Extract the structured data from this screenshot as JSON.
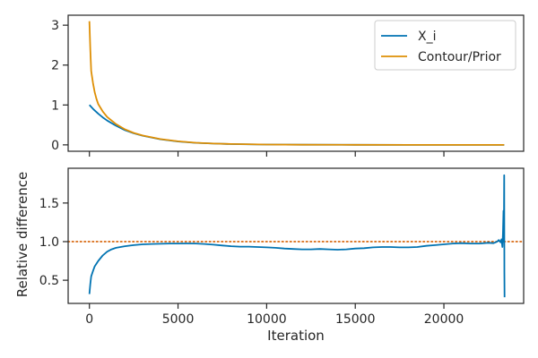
{
  "chart_data": [
    {
      "type": "line",
      "xlim": [
        -1200,
        24500
      ],
      "ylim": [
        -0.16,
        3.25
      ],
      "yticks": [
        "0",
        "1",
        "2",
        "3"
      ],
      "yticks_values": [
        0,
        1,
        2,
        3
      ],
      "xlabel": "",
      "ylabel": "",
      "legend": "top-right",
      "series": [
        {
          "name": "X_i",
          "color": "#0173b2",
          "x": [
            0,
            250,
            500,
            750,
            1000,
            1500,
            2000,
            2500,
            3000,
            4000,
            5000,
            6000,
            7000,
            8000,
            10000,
            12000,
            15000,
            18000,
            20000,
            23000,
            23400
          ],
          "y": [
            1.0,
            0.88,
            0.78,
            0.69,
            0.61,
            0.48,
            0.37,
            0.29,
            0.23,
            0.14,
            0.085,
            0.052,
            0.032,
            0.02,
            0.008,
            0.003,
            0.001,
            0.0003,
            0.0001,
            0.0,
            0.0
          ]
        },
        {
          "name": "Contour/Prior",
          "color": "#de8f05",
          "x": [
            0,
            50,
            100,
            200,
            300,
            400,
            500,
            750,
            1000,
            1500,
            2000,
            2500,
            3000,
            4000,
            5000,
            6000,
            7000,
            8000,
            10000,
            12000,
            15000,
            18000,
            20000,
            23000,
            23400
          ],
          "y": [
            3.1,
            2.4,
            1.85,
            1.55,
            1.32,
            1.15,
            1.02,
            0.84,
            0.7,
            0.52,
            0.39,
            0.3,
            0.235,
            0.145,
            0.088,
            0.054,
            0.033,
            0.021,
            0.008,
            0.003,
            0.001,
            0.0003,
            0.0001,
            0.0,
            0.0
          ]
        }
      ]
    },
    {
      "type": "line",
      "xlim": [
        -1200,
        24500
      ],
      "ylim": [
        0.2,
        1.95
      ],
      "xticks": [
        "0",
        "5000",
        "10000",
        "15000",
        "20000"
      ],
      "xticks_values": [
        0,
        5000,
        10000,
        15000,
        20000
      ],
      "yticks": [
        "0.5",
        "1.0",
        "1.5"
      ],
      "yticks_values": [
        0.5,
        1.0,
        1.5
      ],
      "xlabel": "Iteration",
      "ylabel": "Relative difference",
      "reference_line": {
        "y": 1.0,
        "color": "#d55e00",
        "style": "dotted"
      },
      "series": [
        {
          "color": "#0173b2",
          "x": [
            0,
            50,
            100,
            200,
            300,
            500,
            750,
            1000,
            1250,
            1500,
            2000,
            2500,
            3000,
            3500,
            4000,
            4500,
            5000,
            5500,
            6000,
            6500,
            7000,
            7500,
            8000,
            8500,
            9000,
            9500,
            10000,
            10500,
            11000,
            11500,
            12000,
            12500,
            13000,
            13500,
            14000,
            14500,
            15000,
            15500,
            16000,
            16500,
            17000,
            17500,
            18000,
            18500,
            19000,
            19500,
            20000,
            20500,
            21000,
            21500,
            22000,
            22500,
            22800,
            23000,
            23100,
            23200,
            23250,
            23300,
            23330,
            23360,
            23380,
            23400,
            23410,
            23420
          ],
          "y": [
            0.32,
            0.45,
            0.55,
            0.62,
            0.68,
            0.75,
            0.82,
            0.87,
            0.9,
            0.92,
            0.94,
            0.955,
            0.965,
            0.97,
            0.972,
            0.975,
            0.975,
            0.976,
            0.975,
            0.97,
            0.96,
            0.95,
            0.94,
            0.935,
            0.935,
            0.93,
            0.925,
            0.92,
            0.91,
            0.905,
            0.9,
            0.9,
            0.905,
            0.9,
            0.895,
            0.9,
            0.91,
            0.915,
            0.925,
            0.93,
            0.93,
            0.925,
            0.925,
            0.93,
            0.945,
            0.955,
            0.965,
            0.975,
            0.98,
            0.975,
            0.975,
            0.985,
            0.98,
            1.0,
            1.02,
            0.99,
            1.03,
            0.93,
            1.1,
            1.4,
            1.0,
            1.86,
            0.6,
            0.28
          ]
        }
      ]
    }
  ]
}
